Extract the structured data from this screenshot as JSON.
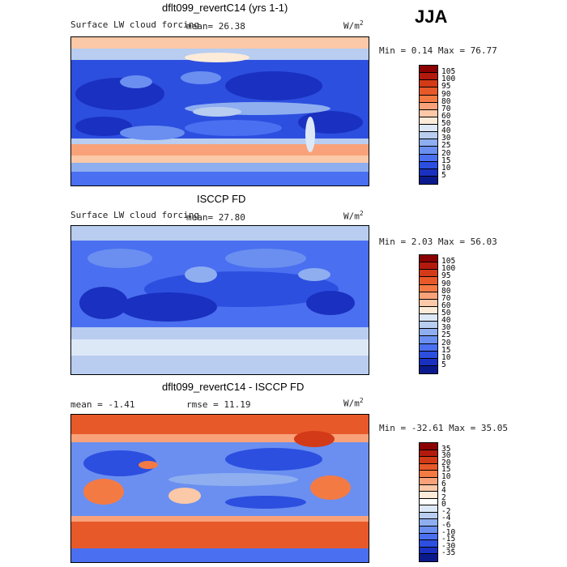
{
  "season": "JJA",
  "panels": [
    {
      "title": "dflt099_revertC14 (yrs 1-1)",
      "field_label": "Surface LW cloud forcing",
      "stat1": "mean=  26.38",
      "stat2": "",
      "units": "W/m",
      "units_exp": "2",
      "minmax": "Min =   0.14 Max =  76.77",
      "palette": "abs",
      "levels": [
        "105",
        "100",
        "95",
        "90",
        "80",
        "70",
        "60",
        "50",
        "40",
        "30",
        "25",
        "20",
        "15",
        "10",
        "5"
      ]
    },
    {
      "title": "ISCCP FD",
      "field_label": "Surface LW cloud forcing",
      "stat1": "mean=  27.80",
      "stat2": "",
      "units": "W/m",
      "units_exp": "2",
      "minmax": "Min =   2.03 Max =  56.03",
      "palette": "abs",
      "levels": [
        "105",
        "100",
        "95",
        "90",
        "80",
        "70",
        "60",
        "50",
        "40",
        "30",
        "25",
        "20",
        "15",
        "10",
        "5"
      ]
    },
    {
      "title": "dflt099_revertC14 - ISCCP FD",
      "field_label": "",
      "stat1": "mean =  -1.41",
      "stat2": "rmse =  11.19",
      "units": "W/m",
      "units_exp": "2",
      "minmax": "Min = -32.61 Max =  35.05",
      "palette": "diff",
      "levels": [
        "35",
        "30",
        "20",
        "15",
        "10",
        "6",
        "4",
        "2",
        "0",
        "-2",
        "-4",
        "-6",
        "-10",
        "-15",
        "-30",
        "-35"
      ]
    }
  ],
  "colors": {
    "abs": [
      "#8b0000",
      "#b21a0d",
      "#d33a17",
      "#e8592a",
      "#f47a44",
      "#f9a27a",
      "#fbc8a8",
      "#fdebd9",
      "#dde8f7",
      "#b8cdf0",
      "#8eaef0",
      "#6a8ff0",
      "#4a6ff0",
      "#2c4fe0",
      "#1a30c0",
      "#0a1a8c"
    ],
    "diff": [
      "#8b0000",
      "#b21a0d",
      "#d33a17",
      "#e8592a",
      "#f47a44",
      "#f9a27a",
      "#fbc8a8",
      "#fdebd9",
      "#ffffff",
      "#dde8f7",
      "#b8cdf0",
      "#8eaef0",
      "#6a8ff0",
      "#4a6ff0",
      "#2c4fe0",
      "#1a30c0",
      "#0a1a8c"
    ]
  }
}
